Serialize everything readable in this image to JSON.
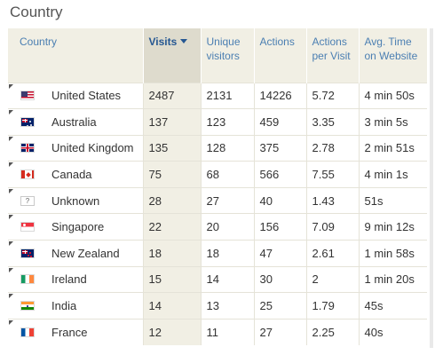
{
  "widget": {
    "title": "Country"
  },
  "columns": {
    "country": "Country",
    "visits": "Visits",
    "unique_visitors": "Unique visitors",
    "actions": "Actions",
    "actions_per_visit": "Actions per Visit",
    "avg_time": "Avg. Time on Website"
  },
  "sorted_column": "visits",
  "rows": [
    {
      "country": "United States",
      "flag_icon": "flag-us-icon",
      "visits": "2487",
      "unique": "2131",
      "actions": "14226",
      "apv": "5.72",
      "avg_time": "4 min 50s"
    },
    {
      "country": "Australia",
      "flag_icon": "flag-au-icon",
      "visits": "137",
      "unique": "123",
      "actions": "459",
      "apv": "3.35",
      "avg_time": "3 min 5s"
    },
    {
      "country": "United Kingdom",
      "flag_icon": "flag-gb-icon",
      "visits": "135",
      "unique": "128",
      "actions": "375",
      "apv": "2.78",
      "avg_time": "2 min 51s"
    },
    {
      "country": "Canada",
      "flag_icon": "flag-ca-icon",
      "visits": "75",
      "unique": "68",
      "actions": "566",
      "apv": "7.55",
      "avg_time": "4 min 1s"
    },
    {
      "country": "Unknown",
      "flag_icon": "flag-unknown-icon",
      "visits": "28",
      "unique": "27",
      "actions": "40",
      "apv": "1.43",
      "avg_time": "51s"
    },
    {
      "country": "Singapore",
      "flag_icon": "flag-sg-icon",
      "visits": "22",
      "unique": "20",
      "actions": "156",
      "apv": "7.09",
      "avg_time": "9 min 12s"
    },
    {
      "country": "New Zealand",
      "flag_icon": "flag-nz-icon",
      "visits": "18",
      "unique": "18",
      "actions": "47",
      "apv": "2.61",
      "avg_time": "1 min 58s"
    },
    {
      "country": "Ireland",
      "flag_icon": "flag-ie-icon",
      "visits": "15",
      "unique": "14",
      "actions": "30",
      "apv": "2",
      "avg_time": "1 min 20s"
    },
    {
      "country": "India",
      "flag_icon": "flag-in-icon",
      "visits": "14",
      "unique": "13",
      "actions": "25",
      "apv": "1.79",
      "avg_time": "45s"
    },
    {
      "country": "France",
      "flag_icon": "flag-fr-icon",
      "visits": "12",
      "unique": "11",
      "actions": "27",
      "apv": "2.25",
      "avg_time": "40s"
    }
  ],
  "unknown_flag_glyph": "?",
  "colors": {
    "header_bg": "#f1efe4",
    "sorted_header_bg": "#dedbcd",
    "header_text": "#4b7fb2",
    "sorted_header_text": "#255792"
  }
}
